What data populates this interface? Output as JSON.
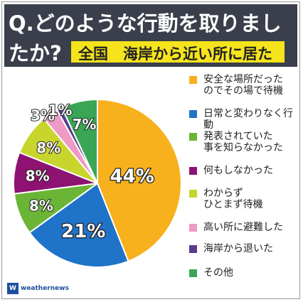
{
  "header": {
    "question_line1": "Q.どのような行動を取りまし",
    "question_line2": "たか?",
    "subtitle": "全国　海岸から近い所に居た"
  },
  "logo": {
    "mark": "W",
    "text": "weathernews"
  },
  "chart_data": {
    "type": "pie",
    "title": "Q.どのような行動を取りましたか?",
    "subtitle": "全国　海岸から近い所に居た",
    "start": "12 o'clock",
    "direction": "clockwise",
    "legend_position": "right",
    "slices": [
      {
        "label": "安全な場所だったのでその場で待機",
        "value": 44,
        "display": "44%",
        "color": "#f7b11c"
      },
      {
        "label": "日常と変わりなく行動",
        "value": 21,
        "display": "21%",
        "color": "#1f73c9"
      },
      {
        "label": "発表されていた事を知らなかった",
        "value": 8,
        "display": "8%",
        "color": "#6bb536"
      },
      {
        "label": "何もしなかった",
        "value": 8,
        "display": "8%",
        "color": "#8e1271"
      },
      {
        "label": "わからずひとまず待機",
        "value": 8,
        "display": "8%",
        "color": "#c8d52c"
      },
      {
        "label": "高い所に避難した",
        "value": 3,
        "display": "3%",
        "color": "#ee9ac4"
      },
      {
        "label": "海岸から退いた",
        "value": 1,
        "display": "1%",
        "color": "#5a3b8c"
      },
      {
        "label": "その他",
        "value": 7,
        "display": "7%",
        "color": "#3aa655"
      }
    ]
  },
  "legend": [
    {
      "text": "安全な場所だった\nのでその場で待機"
    },
    {
      "text": "日常と変わりなく行動"
    },
    {
      "text": "発表されていた\n事を知らなかった"
    },
    {
      "text": "何もしなかった"
    },
    {
      "text": "わからず\nひとまず待機"
    },
    {
      "text": "高い所に避難した"
    },
    {
      "text": "海岸から退いた"
    },
    {
      "text": "その他"
    }
  ]
}
